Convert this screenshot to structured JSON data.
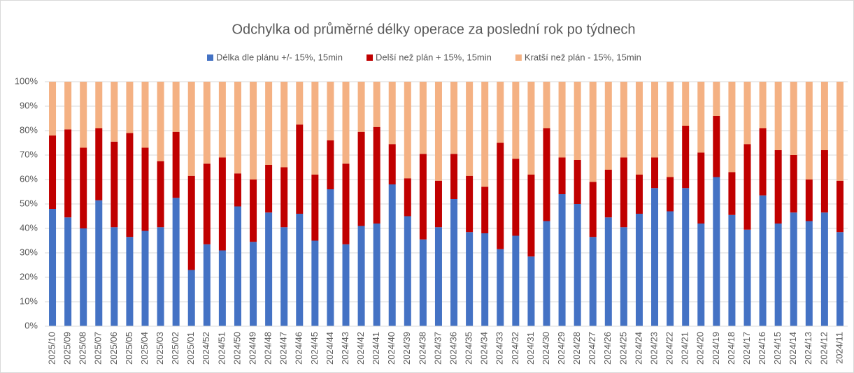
{
  "chart_data": {
    "type": "stacked_bar",
    "title": "Odchylka od průměrné délky operace za poslední rok po týdnech",
    "categories": [
      "2025/10",
      "2025/09",
      "2025/08",
      "2025/07",
      "2025/06",
      "2025/05",
      "2025/04",
      "2025/03",
      "2025/02",
      "2025/01",
      "2024/52",
      "2024/51",
      "2024/50",
      "2024/49",
      "2024/48",
      "2024/47",
      "2024/46",
      "2024/45",
      "2024/44",
      "2024/43",
      "2024/42",
      "2024/41",
      "2024/40",
      "2024/39",
      "2024/38",
      "2024/37",
      "2024/36",
      "2024/35",
      "2024/34",
      "2024/33",
      "2024/32",
      "2024/31",
      "2024/30",
      "2024/29",
      "2024/28",
      "2024/27",
      "2024/26",
      "2024/25",
      "2024/24",
      "2024/23",
      "2024/22",
      "2024/21",
      "2024/20",
      "2024/19",
      "2024/18",
      "2024/17",
      "2024/16",
      "2024/15",
      "2024/14",
      "2024/13",
      "2024/12",
      "2024/11"
    ],
    "series": [
      {
        "name": "Délka dle plánu +/- 15%, 15min",
        "color": "#4472c4",
        "values": [
          48,
          44.5,
          40,
          51.5,
          40.5,
          36.5,
          39,
          40.5,
          52.5,
          23,
          33.5,
          31,
          49,
          34.5,
          46.5,
          40.5,
          46,
          35,
          56,
          33.5,
          41,
          42,
          58,
          45,
          35.5,
          40.5,
          52,
          38.5,
          38,
          31.5,
          37,
          28.5,
          43,
          54,
          50,
          36.5,
          44.5,
          40.5,
          46,
          56.5,
          47,
          56.5,
          42,
          61,
          45.5,
          39.5,
          53.5,
          42,
          46.5,
          43,
          46.5,
          38.5
        ]
      },
      {
        "name": "Delší než plán + 15%, 15min",
        "color": "#c00000",
        "values": [
          30,
          36,
          33,
          29.5,
          35,
          42.5,
          34,
          27,
          27,
          38.5,
          33,
          38,
          13.5,
          25.5,
          19.5,
          24.5,
          36.5,
          27,
          20,
          33,
          38.5,
          39.5,
          16.5,
          15.5,
          35,
          19,
          18.5,
          23,
          19,
          43.5,
          31.5,
          33.5,
          38,
          15,
          18,
          22.5,
          19.5,
          28.5,
          16,
          12.5,
          14,
          25.5,
          29,
          25,
          17.5,
          35,
          27.5,
          30,
          23.5,
          17,
          25.5,
          21
        ]
      },
      {
        "name": "Kratší než plán - 15%, 15min",
        "color": "#f4b183",
        "values": [
          22,
          19.5,
          27,
          19,
          24.5,
          21,
          27,
          32.5,
          20.5,
          38.5,
          33.5,
          31,
          37.5,
          40,
          34,
          35,
          17.5,
          38,
          24,
          33.5,
          20.5,
          18.5,
          25.5,
          39.5,
          29.5,
          40.5,
          29.5,
          38.5,
          43,
          25,
          31.5,
          38,
          19,
          31,
          32,
          41,
          36,
          31,
          38,
          31,
          39,
          18,
          29,
          14,
          37,
          25.5,
          19,
          28,
          30,
          40,
          28,
          40.5
        ]
      }
    ],
    "ylim": [
      0,
      100
    ],
    "yticks": [
      {
        "value": 0,
        "label": "0%"
      },
      {
        "value": 10,
        "label": "10%"
      },
      {
        "value": 20,
        "label": "20%"
      },
      {
        "value": 30,
        "label": "30%"
      },
      {
        "value": 40,
        "label": "40%"
      },
      {
        "value": 50,
        "label": "50%"
      },
      {
        "value": 60,
        "label": "60%"
      },
      {
        "value": 70,
        "label": "70%"
      },
      {
        "value": 80,
        "label": "80%"
      },
      {
        "value": 90,
        "label": "90%"
      },
      {
        "value": 100,
        "label": "100%"
      }
    ],
    "legend": "top"
  }
}
